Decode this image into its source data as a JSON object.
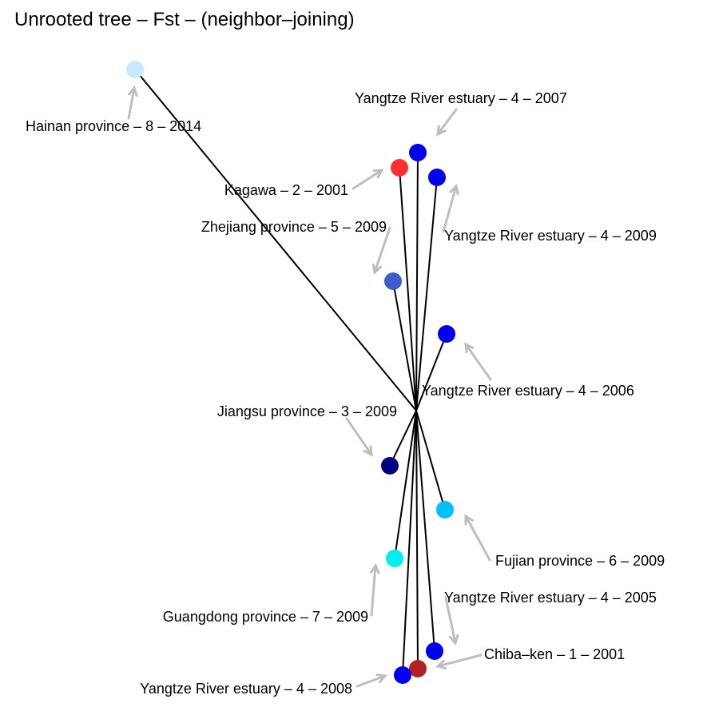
{
  "title": "Unrooted tree – Fst – (neighbor–joining)",
  "tips": [
    {
      "label": "Hainan province – 8 – 2014",
      "color": "#c6ecfb"
    },
    {
      "label": "Yangtze River estuary – 4 – 2007",
      "color": "#0000ee"
    },
    {
      "label": "Kagawa – 2 – 2001",
      "color": "#ff3030"
    },
    {
      "label": "Yangtze River estuary – 4 – 2009",
      "color": "#0000ee"
    },
    {
      "label": "Zhejiang province – 5 – 2009",
      "color": "#3a5fcd"
    },
    {
      "label": "Yangtze River estuary – 4 – 2006",
      "color": "#0000ee"
    },
    {
      "label": "Jiangsu province – 3 – 2009",
      "color": "#000080"
    },
    {
      "label": "Fujian province – 6 – 2009",
      "color": "#00bfff"
    },
    {
      "label": "Guangdong province – 7 – 2009",
      "color": "#00eeee"
    },
    {
      "label": "Yangtze River estuary – 4 – 2005",
      "color": "#0000ee"
    },
    {
      "label": "Chiba–ken – 1 – 2001",
      "color": "#b22222"
    },
    {
      "label": "Yangtze River estuary – 4 – 2008",
      "color": "#0000ee"
    }
  ],
  "colors": {
    "branch": "#000000",
    "arrow": "#bebebe"
  }
}
